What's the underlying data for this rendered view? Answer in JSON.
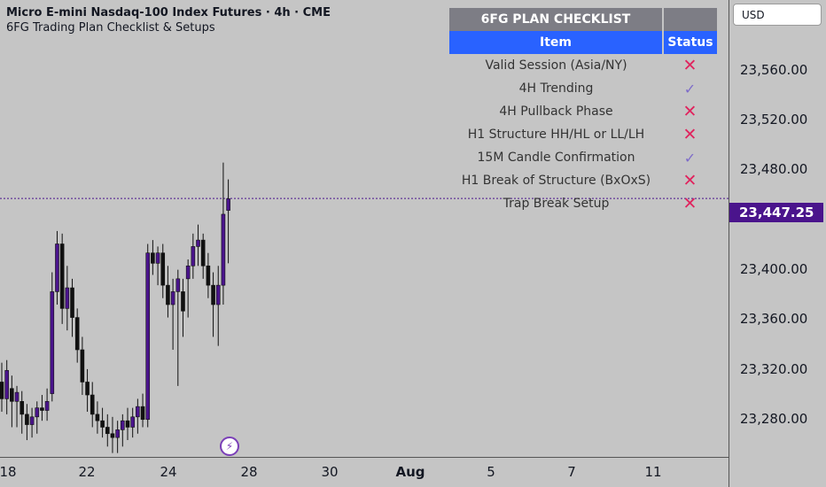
{
  "header": {
    "title": "Micro E-mini Nasdaq-100 Index Futures · 4h · CME",
    "subtitle": "6FG Trading Plan Checklist & Setups"
  },
  "currency": "USD",
  "price_axis": [
    "23,560.00",
    "23,520.00",
    "23,480.00",
    "23,400.00",
    "23,360.00",
    "23,320.00",
    "23,280.00"
  ],
  "last_price": "23,447.25",
  "time_axis": [
    "18",
    "22",
    "24",
    "28",
    "30",
    "Aug",
    "5",
    "7",
    "11"
  ],
  "checklist": {
    "title": "6FG PLAN CHECKLIST",
    "col_item": "Item",
    "col_status": "Status",
    "rows": [
      {
        "item": "Valid Session (Asia/NY)",
        "status": "x"
      },
      {
        "item": "4H Trending",
        "status": "check"
      },
      {
        "item": "4H Pullback Phase",
        "status": "x"
      },
      {
        "item": "H1 Structure HH/HL or LL/LH",
        "status": "x"
      },
      {
        "item": "15M Candle Confirmation",
        "status": "check"
      },
      {
        "item": "H1 Break of Structure (BxOxS)",
        "status": "x"
      },
      {
        "item": "Trap Break Setup",
        "status": "x"
      }
    ]
  },
  "colors": {
    "candle_body": "#4a148c",
    "last_price_bg": "#4a148c",
    "status_x": "#e0245e",
    "status_check": "#7e6cc9",
    "header_blue": "#2962ff"
  },
  "chart_data": {
    "type": "candlestick",
    "ylim": [
      23247,
      23601
    ],
    "candles": [
      {
        "o": 23305,
        "h": 23320,
        "l": 23282,
        "c": 23292
      },
      {
        "o": 23292,
        "h": 23322,
        "l": 23280,
        "c": 23314
      },
      {
        "o": 23300,
        "h": 23310,
        "l": 23270,
        "c": 23290
      },
      {
        "o": 23290,
        "h": 23302,
        "l": 23270,
        "c": 23297
      },
      {
        "o": 23290,
        "h": 23298,
        "l": 23265,
        "c": 23280
      },
      {
        "o": 23280,
        "h": 23288,
        "l": 23260,
        "c": 23272
      },
      {
        "o": 23272,
        "h": 23285,
        "l": 23262,
        "c": 23278
      },
      {
        "o": 23278,
        "h": 23290,
        "l": 23265,
        "c": 23285
      },
      {
        "o": 23285,
        "h": 23295,
        "l": 23275,
        "c": 23283
      },
      {
        "o": 23283,
        "h": 23300,
        "l": 23275,
        "c": 23290
      },
      {
        "o": 23296,
        "h": 23390,
        "l": 23290,
        "c": 23375
      },
      {
        "o": 23375,
        "h": 23422,
        "l": 23365,
        "c": 23412
      },
      {
        "o": 23412,
        "h": 23420,
        "l": 23350,
        "c": 23362
      },
      {
        "o": 23362,
        "h": 23395,
        "l": 23345,
        "c": 23378
      },
      {
        "o": 23378,
        "h": 23385,
        "l": 23340,
        "c": 23355
      },
      {
        "o": 23355,
        "h": 23362,
        "l": 23320,
        "c": 23330
      },
      {
        "o": 23330,
        "h": 23340,
        "l": 23295,
        "c": 23305
      },
      {
        "o": 23305,
        "h": 23315,
        "l": 23282,
        "c": 23295
      },
      {
        "o": 23295,
        "h": 23305,
        "l": 23270,
        "c": 23280
      },
      {
        "o": 23280,
        "h": 23290,
        "l": 23265,
        "c": 23275
      },
      {
        "o": 23275,
        "h": 23285,
        "l": 23262,
        "c": 23270
      },
      {
        "o": 23270,
        "h": 23280,
        "l": 23255,
        "c": 23265
      },
      {
        "o": 23265,
        "h": 23278,
        "l": 23250,
        "c": 23262
      },
      {
        "o": 23262,
        "h": 23275,
        "l": 23250,
        "c": 23268
      },
      {
        "o": 23268,
        "h": 23280,
        "l": 23255,
        "c": 23275
      },
      {
        "o": 23275,
        "h": 23285,
        "l": 23260,
        "c": 23270
      },
      {
        "o": 23270,
        "h": 23285,
        "l": 23262,
        "c": 23278
      },
      {
        "o": 23278,
        "h": 23292,
        "l": 23265,
        "c": 23286
      },
      {
        "o": 23286,
        "h": 23296,
        "l": 23270,
        "c": 23276
      },
      {
        "o": 23276,
        "h": 23412,
        "l": 23270,
        "c": 23405
      },
      {
        "o": 23405,
        "h": 23415,
        "l": 23388,
        "c": 23397
      },
      {
        "o": 23397,
        "h": 23410,
        "l": 23380,
        "c": 23405
      },
      {
        "o": 23405,
        "h": 23412,
        "l": 23370,
        "c": 23380
      },
      {
        "o": 23380,
        "h": 23395,
        "l": 23355,
        "c": 23365
      },
      {
        "o": 23365,
        "h": 23385,
        "l": 23330,
        "c": 23375
      },
      {
        "o": 23375,
        "h": 23392,
        "l": 23302,
        "c": 23385
      },
      {
        "o": 23375,
        "h": 23385,
        "l": 23340,
        "c": 23360
      },
      {
        "o": 23385,
        "h": 23400,
        "l": 23355,
        "c": 23395
      },
      {
        "o": 23395,
        "h": 23420,
        "l": 23385,
        "c": 23410
      },
      {
        "o": 23410,
        "h": 23427,
        "l": 23395,
        "c": 23415
      },
      {
        "o": 23415,
        "h": 23420,
        "l": 23385,
        "c": 23395
      },
      {
        "o": 23395,
        "h": 23405,
        "l": 23370,
        "c": 23380
      },
      {
        "o": 23380,
        "h": 23390,
        "l": 23340,
        "c": 23365
      },
      {
        "o": 23365,
        "h": 23395,
        "l": 23333,
        "c": 23380
      },
      {
        "o": 23380,
        "h": 23475,
        "l": 23365,
        "c": 23435
      },
      {
        "o": 23438,
        "h": 23462,
        "l": 23397,
        "c": 23447
      }
    ]
  }
}
